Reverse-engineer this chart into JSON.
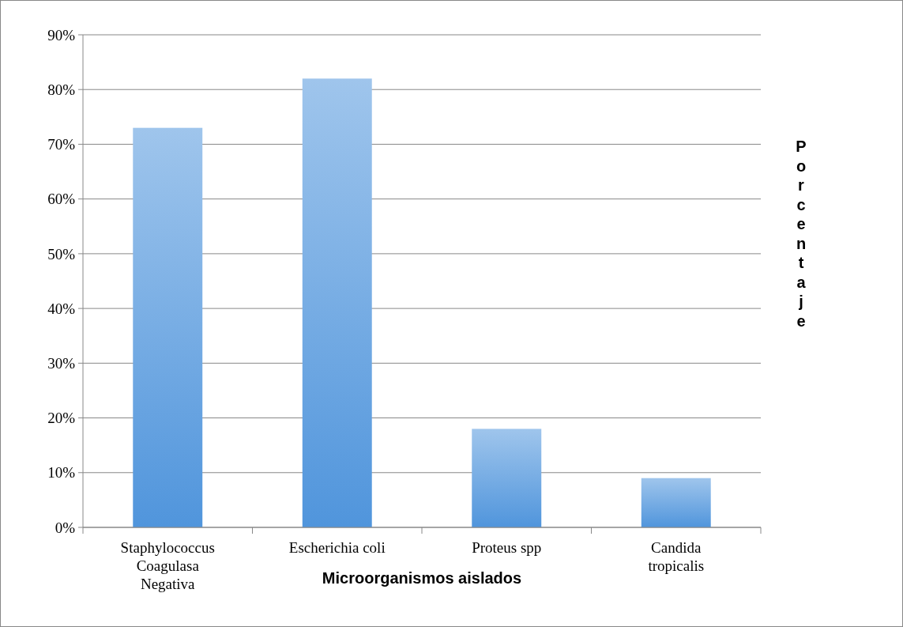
{
  "chart_data": {
    "type": "bar",
    "xlabel": "Microorganismos aislados",
    "ylabel": "Porcentaje",
    "categories": [
      "Staphylococcus Coagulasa Negativa",
      "Escherichia coli",
      "Proteus spp",
      "Candida tropicalis"
    ],
    "values": [
      73,
      82,
      18,
      9
    ],
    "color": "#5095dc",
    "ylim": [
      0,
      90
    ],
    "yticks": [
      {
        "value": 0,
        "label": "0%"
      },
      {
        "value": 10,
        "label": "10%"
      },
      {
        "value": 20,
        "label": "20%"
      },
      {
        "value": 30,
        "label": "30%"
      },
      {
        "value": 40,
        "label": "40%"
      },
      {
        "value": 50,
        "label": "50%"
      },
      {
        "value": 60,
        "label": "60%"
      },
      {
        "value": 70,
        "label": "70%"
      },
      {
        "value": 80,
        "label": "80%"
      },
      {
        "value": 90,
        "label": "90%"
      }
    ],
    "grid": "y"
  }
}
